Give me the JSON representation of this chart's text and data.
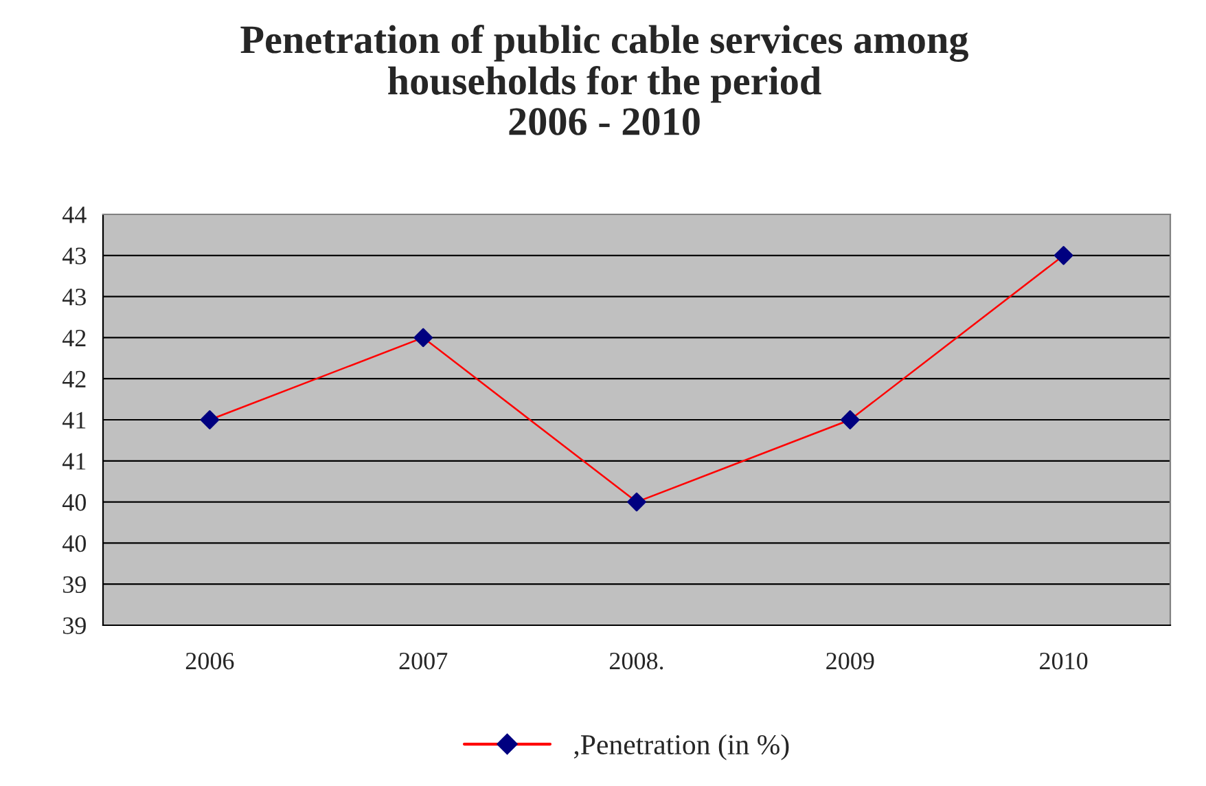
{
  "chart_data": {
    "type": "line",
    "title": "Penetration of public cable services among\nhouseholds for the period\n2006 - 2010",
    "categories": [
      "2006",
      "2007",
      "2008.",
      "2009",
      "2010"
    ],
    "series": [
      {
        "name": ",Penetration (in %)",
        "color": "#ff0000",
        "colors": [
          "#000080",
          "#000080",
          "#000080",
          "#000080",
          "#000080"
        ],
        "values": [
          41.5,
          42.5,
          40.5,
          41.5,
          43.5
        ]
      }
    ],
    "ylim": [
      39,
      44
    ],
    "yticks": [
      {
        "value": 39,
        "label": "39"
      },
      {
        "value": 39.5,
        "label": "39"
      },
      {
        "value": 40,
        "label": "40"
      },
      {
        "value": 40.5,
        "label": "40"
      },
      {
        "value": 41,
        "label": "41"
      },
      {
        "value": 41.5,
        "label": "41"
      },
      {
        "value": 42,
        "label": "42"
      },
      {
        "value": 42.5,
        "label": "42"
      },
      {
        "value": 43,
        "label": "43"
      },
      {
        "value": 43.5,
        "label": "43"
      },
      {
        "value": 44,
        "label": "44"
      }
    ],
    "grid": "y",
    "legend": "bottom",
    "marker": "diamond",
    "line_style": "solid"
  }
}
